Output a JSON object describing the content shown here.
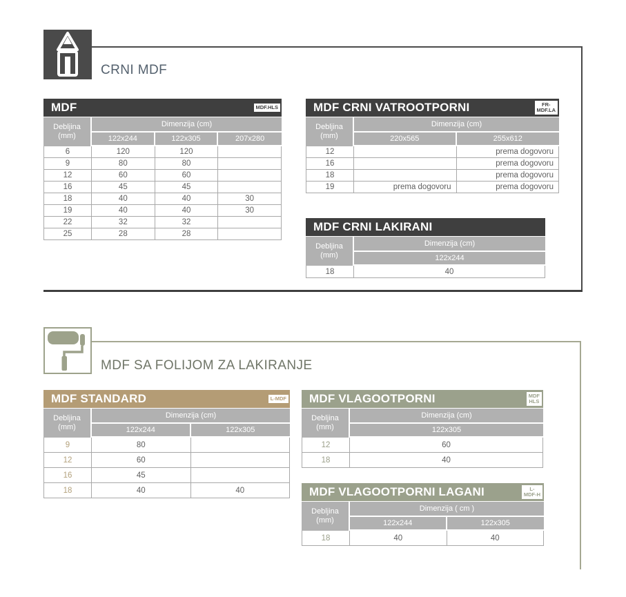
{
  "sections": {
    "crni": {
      "title": "CRNI MDF",
      "icon": "pencil-icon"
    },
    "folija": {
      "title": "MDF SA FOLIJOM ZA LAKIRANJE",
      "icon": "paint-roller-icon"
    }
  },
  "labels": {
    "thickness": "Debljina",
    "thickness_unit": "(mm)"
  },
  "colors": {
    "dark_header": "#3f3f3f",
    "tan_header": "#b49c75",
    "sage_header": "#9ba18c",
    "olive_rule": "#a5a892",
    "gray_subheader": "#b1b1b1"
  },
  "tables": {
    "mdf": {
      "title": "MDF",
      "badge_lines": [
        "MDF.HLS"
      ],
      "theme": "dark",
      "dimension_label": "Dimenzija (cm)",
      "columns": [
        "122x244",
        "122x305",
        "207x280"
      ],
      "rows": [
        {
          "t": "6",
          "v": [
            "120",
            "120",
            ""
          ]
        },
        {
          "t": "9",
          "v": [
            "80",
            "80",
            ""
          ]
        },
        {
          "t": "12",
          "v": [
            "60",
            "60",
            ""
          ]
        },
        {
          "t": "16",
          "v": [
            "45",
            "45",
            ""
          ]
        },
        {
          "t": "18",
          "v": [
            "40",
            "40",
            "30"
          ]
        },
        {
          "t": "19",
          "v": [
            "40",
            "40",
            "30"
          ]
        },
        {
          "t": "22",
          "v": [
            "32",
            "32",
            ""
          ]
        },
        {
          "t": "25",
          "v": [
            "28",
            "28",
            ""
          ]
        }
      ]
    },
    "vatrootporni": {
      "title": "MDF CRNI VATROOTPORNI",
      "badge_lines": [
        "FR-",
        "MDF.LA"
      ],
      "theme": "dark",
      "dimension_label": "Dimenzija (cm)",
      "columns": [
        "220x565",
        "255x612"
      ],
      "value_align": "right",
      "rows": [
        {
          "t": "12",
          "v": [
            "",
            "prema dogovoru"
          ]
        },
        {
          "t": "16",
          "v": [
            "",
            "prema dogovoru"
          ]
        },
        {
          "t": "18",
          "v": [
            "",
            "prema dogovoru"
          ]
        },
        {
          "t": "19",
          "v": [
            "prema dogovoru",
            "prema dogovoru"
          ]
        }
      ]
    },
    "lakirani": {
      "title": "MDF CRNI LAKIRANI",
      "badge_lines": [],
      "theme": "dark",
      "dimension_label": "Dimenzija (cm)",
      "columns": [
        "122x244"
      ],
      "rows": [
        {
          "t": "18",
          "v": [
            "40"
          ]
        }
      ]
    },
    "standard": {
      "title": "MDF STANDARD",
      "badge_lines": [
        "L-MDF"
      ],
      "theme": "tan",
      "dimension_label": "Dimenzija (cm)",
      "columns": [
        "122x244",
        "122x305"
      ],
      "rows": [
        {
          "t": "9",
          "v": [
            "80",
            ""
          ]
        },
        {
          "t": "12",
          "v": [
            "60",
            ""
          ]
        },
        {
          "t": "16",
          "v": [
            "45",
            ""
          ]
        },
        {
          "t": "18",
          "v": [
            "40",
            "40"
          ]
        }
      ]
    },
    "vlagootporni": {
      "title": "MDF VLAGOOTPORNI",
      "badge_lines": [
        "MDF",
        "HLS"
      ],
      "theme": "sage",
      "dimension_label": "Dimenzija (cm)",
      "columns": [
        "122x305"
      ],
      "rows": [
        {
          "t": "12",
          "v": [
            "60"
          ]
        },
        {
          "t": "18",
          "v": [
            "40"
          ]
        }
      ]
    },
    "lagani": {
      "title": "MDF VLAGOOTPORNI LAGANI",
      "badge_lines": [
        "L-",
        "MDF-H"
      ],
      "theme": "sage",
      "dimension_label": "Dimenzija ( cm )",
      "columns": [
        "122x244",
        "122x305"
      ],
      "rows": [
        {
          "t": "18",
          "v": [
            "40",
            "40"
          ]
        }
      ]
    }
  }
}
